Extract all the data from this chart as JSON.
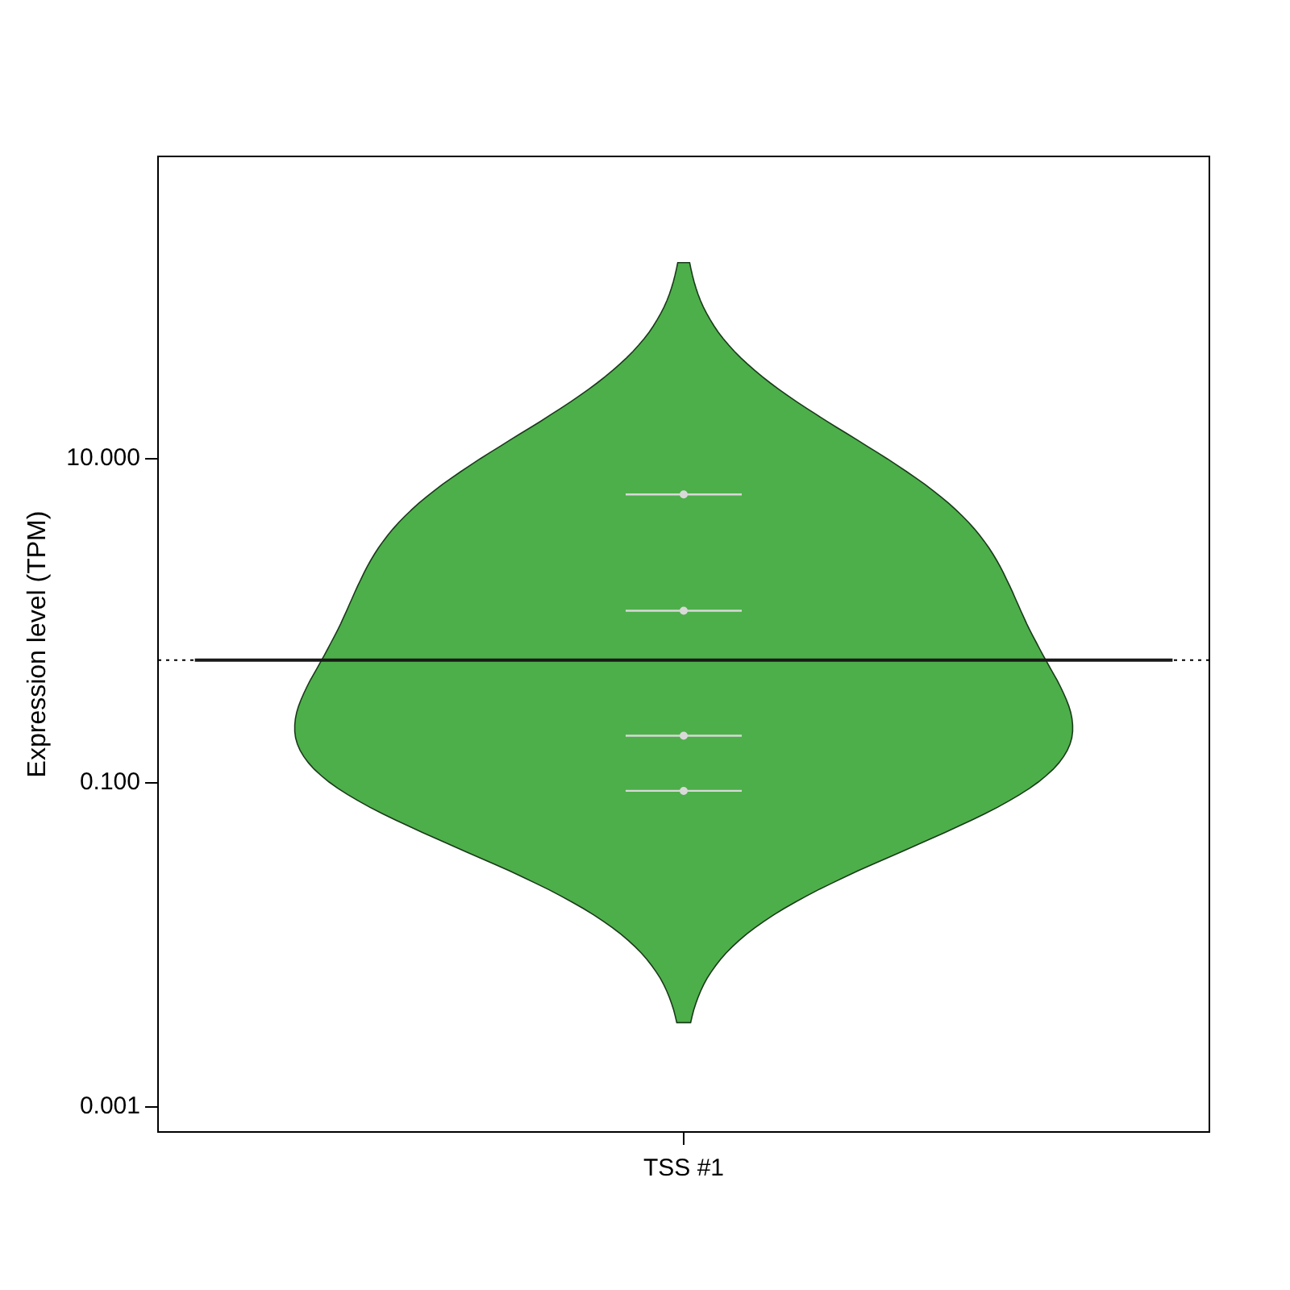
{
  "chart_data": {
    "type": "scatter",
    "ylabel": "Expression level (TPM)",
    "categories": [
      "TSS #1"
    ],
    "log": true,
    "ylim": [
      0.0007,
      730
    ],
    "yticks": [
      {
        "value": 0.001,
        "label": "0.001"
      },
      {
        "value": 0.1,
        "label": "0.100"
      },
      {
        "value": 10,
        "label": "10.000"
      }
    ],
    "series": [
      {
        "color": "#d9d9d9",
        "x": [
          "TSS #1",
          "TSS #1",
          "TSS #1",
          "TSS #1"
        ],
        "values": [
          6.0,
          1.15,
          0.195,
          0.089
        ]
      }
    ],
    "ref_lines": [
      {
        "axis": "y",
        "value": 0.57,
        "line_style": "dotted",
        "color": "#000000"
      },
      {
        "axis": "y",
        "value": 0.57,
        "line_style": "solid",
        "color": "#1a1a1a"
      }
    ]
  }
}
